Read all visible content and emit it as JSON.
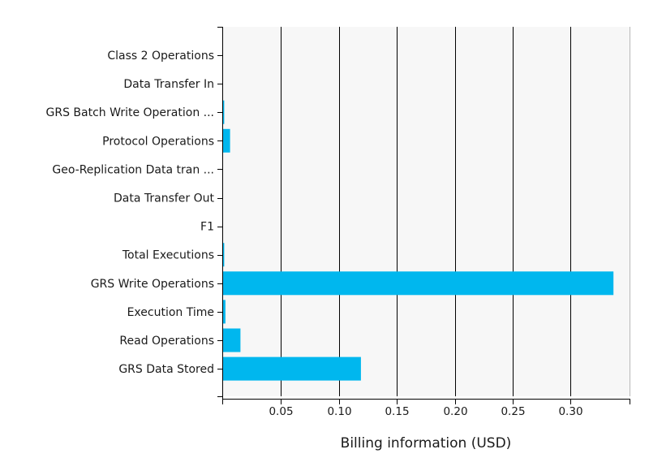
{
  "chart_data": {
    "type": "bar",
    "orientation": "horizontal",
    "categories": [
      "Class 2 Operations",
      "Data Transfer In",
      "GRS Batch Write Operation ...",
      "Protocol Operations",
      "Geo-Replication Data tran ...",
      "Data Transfer Out",
      "F1",
      "Total Executions",
      "GRS Write Operations",
      "Execution Time",
      "Read Operations",
      "GRS Data Stored"
    ],
    "values": [
      0,
      0,
      0.001,
      0.006,
      0,
      0,
      0,
      0.001,
      0.337,
      0.002,
      0.015,
      0.119
    ],
    "xlabel": "Billing information (USD)",
    "ylabel": "",
    "xlim": [
      0,
      0.35
    ],
    "xticks": [
      0.05,
      0.1,
      0.15,
      0.2,
      0.25,
      0.3
    ],
    "xtick_labels": [
      "0.05",
      "0.10",
      "0.15",
      "0.20",
      "0.25",
      "0.30"
    ],
    "grid": "vertical",
    "bar_color": "#00b7ee",
    "plot_background": "#f7f7f7"
  }
}
